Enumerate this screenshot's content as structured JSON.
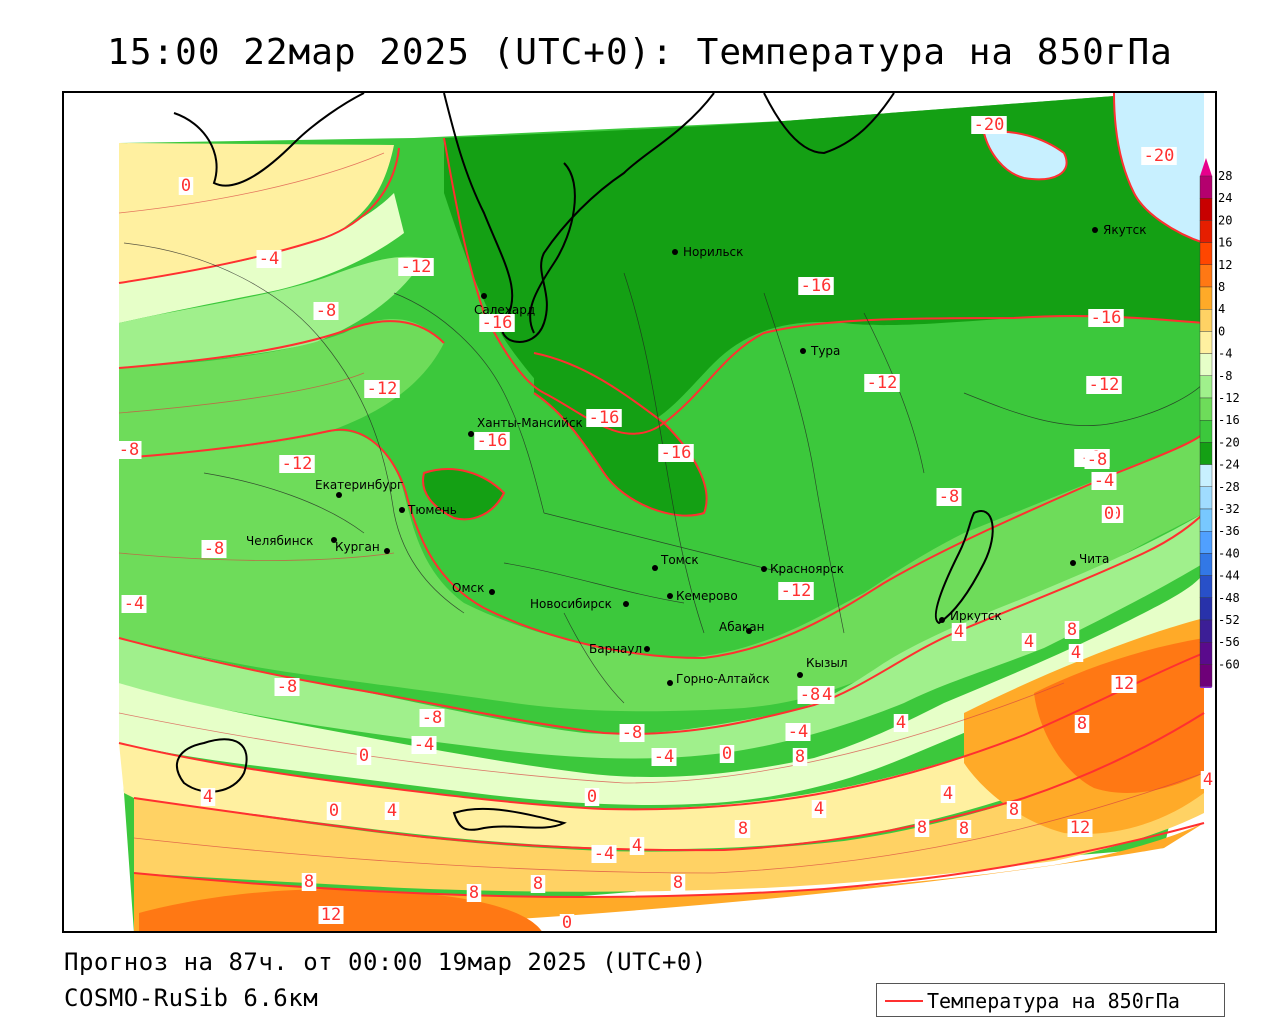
{
  "title": "15:00 22мар 2025 (UTC+0): Температура на 850гПа",
  "forecast_text": "Прогноз на 87ч. от 00:00 19мар 2025 (UTC+0)",
  "model_text": "COSMO-RuSib 6.6км",
  "legend": {
    "label": "Температура на 850гПа",
    "line_color": "#ff3030"
  },
  "colorbar": {
    "ticks": [
      "28",
      "24",
      "20",
      "16",
      "12",
      "8",
      "4",
      "0",
      "-4",
      "-8",
      "-12",
      "-16",
      "-20",
      "-24",
      "-28",
      "-32",
      "-36",
      "-40",
      "-44",
      "-48",
      "-52",
      "-56",
      "-60"
    ],
    "colors": [
      "#b4006e",
      "#c80000",
      "#e61e00",
      "#ff4600",
      "#ff7814",
      "#ffaa28",
      "#ffd264",
      "#fff0a0",
      "#e6ffc8",
      "#a0f08c",
      "#6edc5a",
      "#3cc83c",
      "#14a014",
      "#c8f0ff",
      "#a0dcff",
      "#78c8ff",
      "#50a0ff",
      "#3278e6",
      "#2850c8",
      "#2832aa",
      "#3c1e96",
      "#5a0a8c",
      "#6e0078"
    ]
  },
  "cities": [
    {
      "name": "Норильск"
    },
    {
      "name": "Якутск"
    },
    {
      "name": "Салехард"
    },
    {
      "name": "Тура"
    },
    {
      "name": "Ханты-Мансийск"
    },
    {
      "name": "Екатеринбург"
    },
    {
      "name": "Тюмень"
    },
    {
      "name": "Челябинск"
    },
    {
      "name": "Курган"
    },
    {
      "name": "Омск"
    },
    {
      "name": "Новосибирск"
    },
    {
      "name": "Томск"
    },
    {
      "name": "Кемерово"
    },
    {
      "name": "Красноярск"
    },
    {
      "name": "Барнаул"
    },
    {
      "name": "Абакан"
    },
    {
      "name": "Горно-Алтайск"
    },
    {
      "name": "Кызыл"
    },
    {
      "name": "Иркутск"
    },
    {
      "name": "Чита"
    }
  ],
  "contour_labels": [
    "-20",
    "-20",
    "0",
    "-4",
    "-12",
    "-8",
    "-16",
    "-16",
    "-16",
    "-12",
    "-12",
    "-12",
    "-16",
    "-16",
    "-16",
    "-12",
    "-8",
    "-12",
    "-8",
    "-8",
    "-4",
    "-8",
    "0",
    "-4",
    "-8",
    "-12",
    "-8",
    "-8",
    "-8",
    "-4",
    "0",
    "-4",
    "-4",
    "-4",
    "0",
    "4",
    "4",
    "8",
    "4",
    "4",
    "4",
    "8",
    "12",
    "8",
    "0",
    "4",
    "0",
    "8",
    "4",
    "4",
    "8",
    "8",
    "4",
    "8",
    "12",
    "8",
    "8",
    "8",
    "8",
    "12",
    "8",
    "4",
    "0",
    "0",
    "-4",
    "-8"
  ]
}
